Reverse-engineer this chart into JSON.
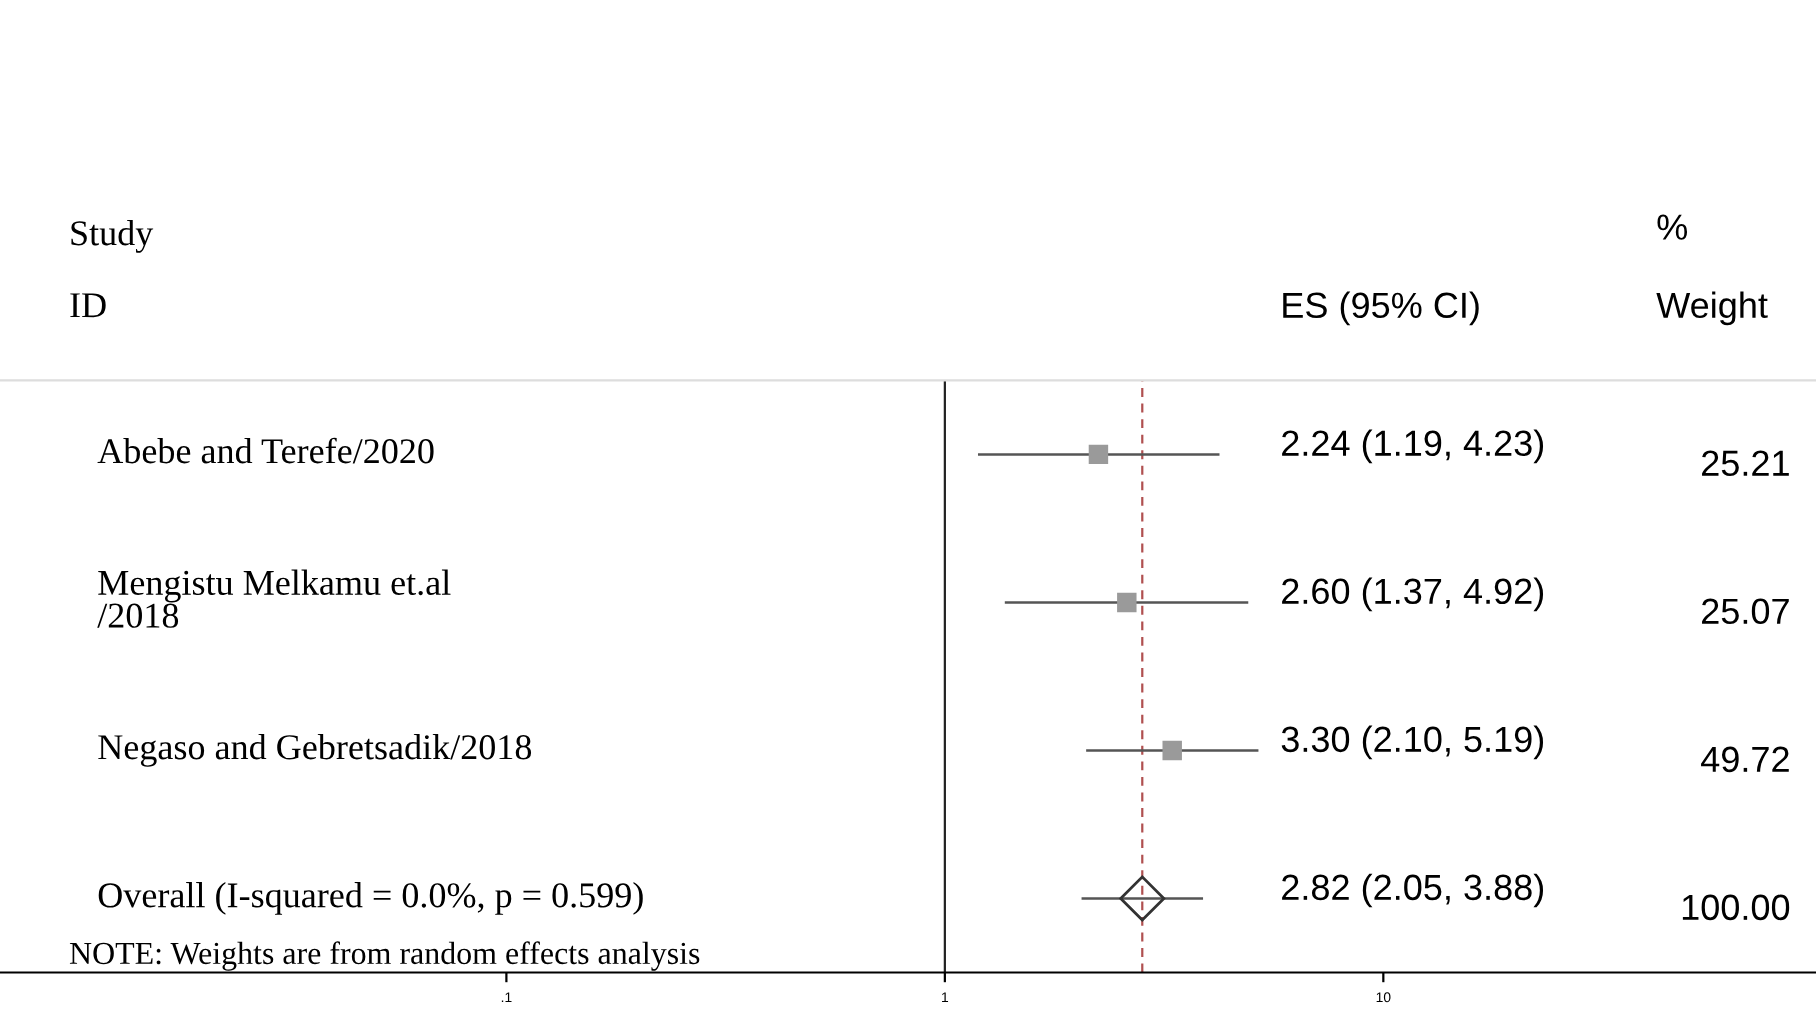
{
  "chart_data": {
    "type": "scatter",
    "orientation": "horizontal",
    "log": "x",
    "categories": [
      "Abebe and Terefe/2020",
      "Mengistu Melkamu et.al\n/2018",
      "Negaso and Gebretsadik/2018",
      "Overall (I-squared = 0.0%, p = 0.599)"
    ],
    "series": [
      {
        "marker": "square",
        "color": "#9a9a9a",
        "values": [
          2.24,
          2.6,
          3.3,
          null
        ],
        "errors": [
          [
            1.19,
            4.23
          ],
          [
            1.37,
            4.92
          ],
          [
            2.1,
            5.19
          ],
          null
        ]
      },
      {
        "marker": "diamond",
        "color": "#333333",
        "values": [
          null,
          null,
          null,
          2.82
        ],
        "errors": [
          null,
          null,
          null,
          [
            2.05,
            3.88
          ]
        ]
      }
    ],
    "xlim": [
      0.007,
      97
    ],
    "xticks": [
      {
        "value": 0.1,
        "label": ".1"
      },
      1,
      10
    ],
    "ref_lines": [
      {
        "axis": "x",
        "value": 1,
        "color": "#222222",
        "line_style": "solid"
      },
      {
        "axis": "x",
        "value": 2.82,
        "color": "#b05050",
        "line_style": "dashed"
      }
    ],
    "annotations": [
      "Study",
      "ID",
      "ES (95% CI)",
      "%",
      "Weight",
      "2.24 (1.19, 4.23)",
      "2.60 (1.37, 4.92)",
      "3.30 (2.10, 5.19)",
      "2.82 (2.05, 3.88)",
      "25.21",
      "25.07",
      "49.72",
      "100.00",
      "NOTE: Weights are from random effects analysis"
    ]
  }
}
